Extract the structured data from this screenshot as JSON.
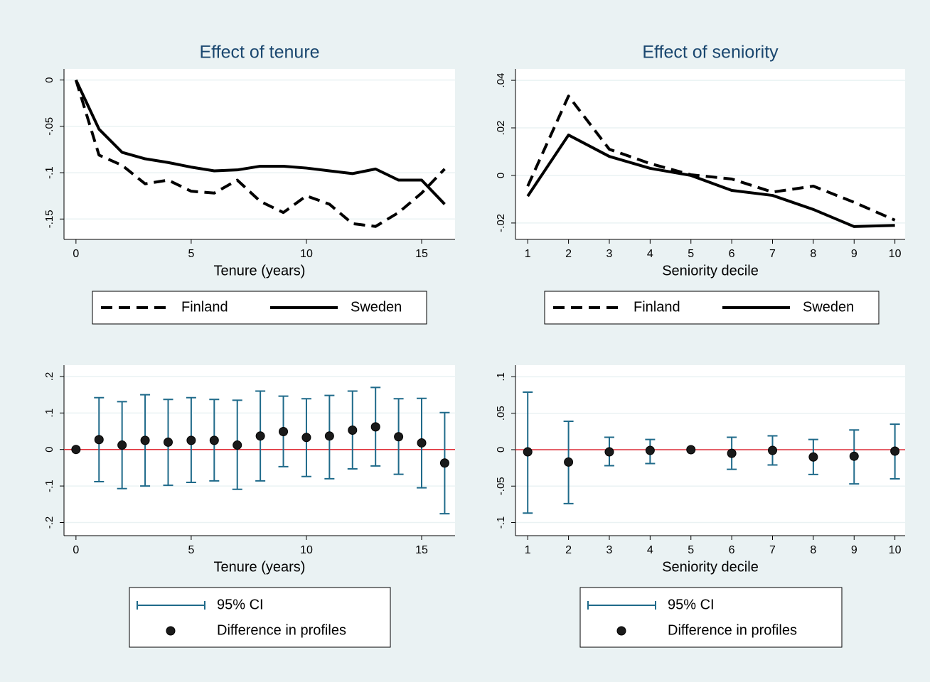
{
  "chart_data": [
    {
      "type": "line",
      "title": "Effect of tenure",
      "x_label": "Tenure (years)",
      "x": [
        0,
        1,
        2,
        3,
        4,
        5,
        6,
        7,
        8,
        9,
        10,
        11,
        12,
        13,
        14,
        15,
        16
      ],
      "series": [
        {
          "name": "Finland",
          "color": "#000000",
          "style": "dash",
          "values": [
            0,
            -0.081,
            -0.092,
            -0.112,
            -0.108,
            -0.12,
            -0.122,
            -0.108,
            -0.131,
            -0.143,
            -0.125,
            -0.134,
            -0.155,
            -0.158,
            -0.143,
            -0.122,
            -0.096
          ]
        },
        {
          "name": "Sweden",
          "color": "#000000",
          "style": "solid",
          "values": [
            0,
            -0.053,
            -0.078,
            -0.085,
            -0.089,
            -0.094,
            -0.098,
            -0.097,
            -0.093,
            -0.093,
            -0.095,
            -0.098,
            -0.101,
            -0.096,
            -0.108,
            -0.108,
            -0.134
          ]
        }
      ],
      "xlim": [
        -0.52,
        16.45
      ],
      "xticks": [
        0,
        5,
        10,
        15
      ],
      "ylim": [
        -0.172,
        0.012
      ],
      "yticks": [
        0,
        {
          "value": -0.05,
          "label": "-.05"
        },
        {
          "value": -0.1,
          "label": "-.1"
        },
        {
          "value": -0.15,
          "label": "-.15"
        }
      ],
      "grid": true
    },
    {
      "type": "line",
      "title": "Effect of seniority",
      "x_label": "Seniority decile",
      "x": [
        1,
        2,
        3,
        4,
        5,
        6,
        7,
        8,
        9,
        10
      ],
      "series": [
        {
          "name": "Finland",
          "color": "#000000",
          "style": "dash",
          "values": [
            -0.0045,
            0.0334,
            0.011,
            0.005,
            0.0003,
            -0.0015,
            -0.007,
            -0.0045,
            -0.0113,
            -0.0188
          ]
        },
        {
          "name": "Sweden",
          "color": "#000000",
          "style": "solid",
          "values": [
            -0.0087,
            0.017,
            0.008,
            0.003,
            0,
            -0.0063,
            -0.0084,
            -0.0143,
            -0.0215,
            -0.021
          ]
        }
      ],
      "xlim": [
        0.7,
        10.25
      ],
      "xticks": [
        1,
        2,
        3,
        4,
        5,
        6,
        7,
        8,
        9,
        10
      ],
      "ylim": [
        -0.0269,
        0.0448
      ],
      "yticks": [
        {
          "value": 0.04,
          "label": ".04"
        },
        {
          "value": 0.02,
          "label": ".02"
        },
        0,
        {
          "value": -0.02,
          "label": "-.02"
        }
      ],
      "grid": true
    },
    {
      "type": "errorbar",
      "x_label": "Tenure (years)",
      "x": [
        0,
        1,
        2,
        3,
        4,
        5,
        6,
        7,
        8,
        9,
        10,
        11,
        12,
        13,
        14,
        15,
        16
      ],
      "series": [
        {
          "name": "95% CI",
          "color": "#1f6a8a",
          "low": [
            null,
            -0.088,
            -0.107,
            -0.1,
            -0.098,
            -0.09,
            -0.086,
            -0.109,
            -0.086,
            -0.047,
            -0.074,
            -0.08,
            -0.053,
            -0.045,
            -0.068,
            -0.105,
            -0.176
          ],
          "high": [
            null,
            0.142,
            0.131,
            0.15,
            0.137,
            0.142,
            0.137,
            0.135,
            0.16,
            0.146,
            0.139,
            0.148,
            0.16,
            0.17,
            0.139,
            0.14,
            0.101
          ]
        },
        {
          "name": "Difference in profiles",
          "color": "#1a1a1a",
          "values": [
            0,
            0.027,
            0.012,
            0.025,
            0.02,
            0.025,
            0.025,
            0.012,
            0.037,
            0.049,
            0.033,
            0.037,
            0.053,
            0.062,
            0.035,
            0.018,
            -0.037
          ]
        }
      ],
      "reference_line": 0,
      "reference_color": "#e0303a",
      "xlim": [
        -0.52,
        16.45
      ],
      "xticks": [
        0,
        5,
        10,
        15
      ],
      "ylim": [
        -0.236,
        0.231
      ],
      "yticks": [
        {
          "value": 0.2,
          "label": ".2"
        },
        {
          "value": 0.1,
          "label": ".1"
        },
        0,
        {
          "value": -0.1,
          "label": "-.1"
        },
        {
          "value": -0.2,
          "label": "-.2"
        }
      ],
      "grid": true
    },
    {
      "type": "errorbar",
      "x_label": "Seniority decile",
      "x": [
        1,
        2,
        3,
        4,
        5,
        6,
        7,
        8,
        9,
        10
      ],
      "series": [
        {
          "name": "95% CI",
          "color": "#1f6a8a",
          "low": [
            -0.087,
            -0.074,
            -0.022,
            -0.019,
            null,
            -0.027,
            -0.021,
            -0.034,
            -0.047,
            -0.04
          ],
          "high": [
            0.079,
            0.039,
            0.017,
            0.014,
            null,
            0.017,
            0.019,
            0.014,
            0.027,
            0.035
          ]
        },
        {
          "name": "Difference in profiles",
          "color": "#1a1a1a",
          "values": [
            -0.003,
            -0.017,
            -0.003,
            -0.001,
            0,
            -0.005,
            -0.001,
            -0.01,
            -0.009,
            -0.002
          ]
        }
      ],
      "reference_line": 0,
      "reference_color": "#e0303a",
      "xlim": [
        0.7,
        10.25
      ],
      "xticks": [
        1,
        2,
        3,
        4,
        5,
        6,
        7,
        8,
        9,
        10
      ],
      "ylim": [
        -0.118,
        0.116
      ],
      "yticks": [
        {
          "value": 0.1,
          "label": ".1"
        },
        {
          "value": 0.05,
          "label": ".05"
        },
        0,
        {
          "value": -0.05,
          "label": "-.05"
        },
        {
          "value": -0.1,
          "label": "-.1"
        }
      ],
      "grid": true
    }
  ]
}
